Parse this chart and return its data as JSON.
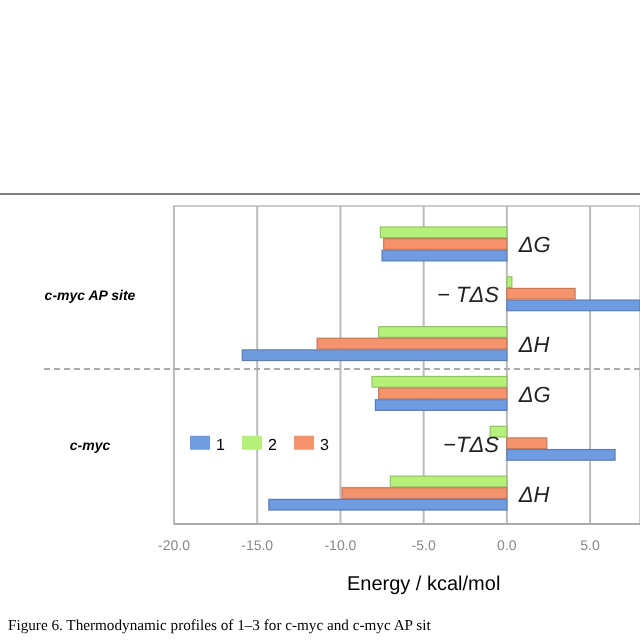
{
  "chart_data": {
    "type": "bar",
    "orientation": "horizontal",
    "xlabel": "Energy / kcal/mol",
    "categories": [
      "ΔG",
      "− TΔS",
      "ΔH",
      "ΔG",
      "−TΔS",
      "ΔH"
    ],
    "series": [
      {
        "name": "1",
        "color": "#6f9be0",
        "values": [
          -7.5,
          8,
          -15.9,
          -7.9,
          6.5,
          -14.3
        ]
      },
      {
        "name": "2",
        "color": "#b5f07a",
        "values": [
          -7.6,
          0.3,
          -7.7,
          -8.1,
          -1.0,
          -7.0
        ]
      },
      {
        "name": "3",
        "color": "#f5946c",
        "values": [
          -7.4,
          4.1,
          -11.4,
          -7.7,
          2.4,
          -9.9
        ]
      }
    ],
    "xlim": [
      -20,
      8
    ],
    "xticks": [
      {
        "value": -20,
        "label": "-20.0"
      },
      {
        "value": -15,
        "label": "-15.0"
      },
      {
        "value": -10,
        "label": "-10.0"
      },
      {
        "value": -5,
        "label": "-5.0"
      },
      {
        "value": 0,
        "label": "0.0"
      },
      {
        "value": 5,
        "label": "5.0"
      }
    ],
    "grid": "x",
    "legend": "left",
    "annotations": [
      "c-myc AP site",
      "c-myc",
      "Figure 6. Thermodynamic profiles of 1–3 for c-myc and c-myc AP sit"
    ]
  }
}
